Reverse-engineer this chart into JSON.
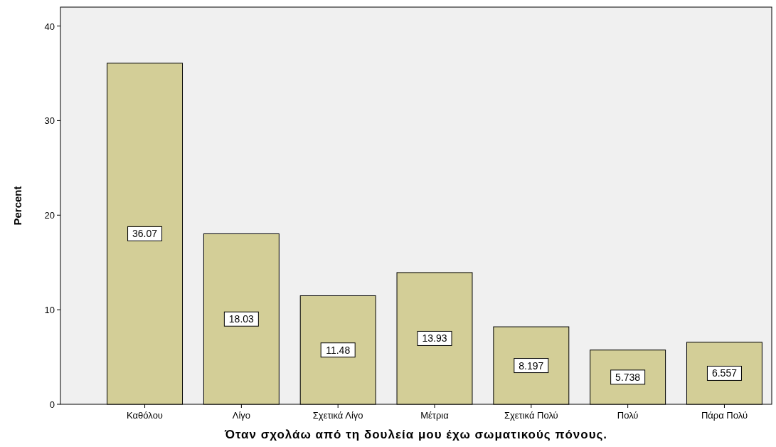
{
  "chart_data": {
    "type": "bar",
    "xlabel": "Όταν σχολάω από τη δουλεία μου έχω σωματικούς πόνους.",
    "ylabel": "Percent",
    "categories": [
      "Καθόλου",
      "Λίγο",
      "Σχετικά Λίγο",
      "Μέτρια",
      "Σχετικά Πολύ",
      "Πολύ",
      "Πάρα Πολύ"
    ],
    "values": [
      36.07,
      18.03,
      11.48,
      13.93,
      8.197,
      5.738,
      6.557
    ],
    "color": "#d3ce97",
    "ylim": [
      0,
      42
    ],
    "yticks": [
      0,
      10,
      20,
      30,
      40
    ],
    "grid": false,
    "data_labels": true
  }
}
